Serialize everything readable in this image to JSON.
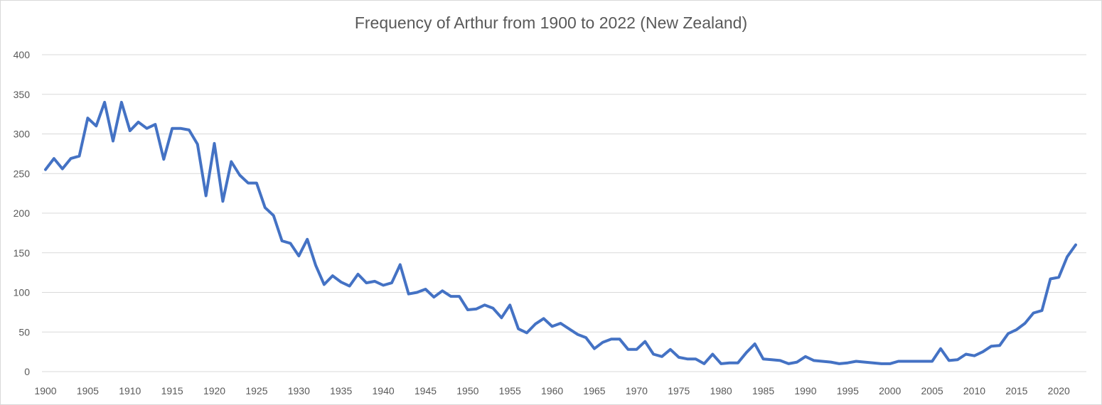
{
  "chart_data": {
    "type": "line",
    "title": "Frequency of Arthur from 1900 to 2022 (New Zealand)",
    "xlabel": "",
    "ylabel": "",
    "ylim": [
      0,
      400
    ],
    "xlim": [
      1900,
      2022
    ],
    "grid": true,
    "legend": "none",
    "y_ticks": [
      0,
      50,
      100,
      150,
      200,
      250,
      300,
      350,
      400
    ],
    "x_ticks": [
      1900,
      1905,
      1910,
      1915,
      1920,
      1925,
      1930,
      1935,
      1940,
      1945,
      1950,
      1955,
      1960,
      1965,
      1970,
      1975,
      1980,
      1985,
      1990,
      1995,
      2000,
      2005,
      2010,
      2015,
      2020
    ],
    "colors": {
      "line": "#4472C4",
      "grid": "#d9d9d9",
      "text": "#595959"
    },
    "series": [
      {
        "x": [
          1900,
          1901,
          1902,
          1903,
          1904,
          1905,
          1906,
          1907,
          1908,
          1909,
          1910,
          1911,
          1912,
          1913,
          1914,
          1915,
          1916,
          1917,
          1918,
          1919,
          1920,
          1921,
          1922,
          1923,
          1924,
          1925,
          1926,
          1927,
          1928,
          1929,
          1930,
          1931,
          1932,
          1933,
          1934,
          1935,
          1936,
          1937,
          1938,
          1939,
          1940,
          1941,
          1942,
          1943,
          1944,
          1945,
          1946,
          1947,
          1948,
          1949,
          1950,
          1951,
          1952,
          1953,
          1954,
          1955,
          1956,
          1957,
          1958,
          1959,
          1960,
          1961,
          1962,
          1963,
          1964,
          1965,
          1966,
          1967,
          1968,
          1969,
          1970,
          1971,
          1972,
          1973,
          1974,
          1975,
          1976,
          1977,
          1978,
          1979,
          1980,
          1981,
          1982,
          1983,
          1984,
          1985,
          1986,
          1987,
          1988,
          1989,
          1990,
          1991,
          1992,
          1993,
          1994,
          1995,
          1996,
          1997,
          1998,
          1999,
          2000,
          2001,
          2002,
          2003,
          2004,
          2005,
          2006,
          2007,
          2008,
          2009,
          2010,
          2011,
          2012,
          2013,
          2014,
          2015,
          2016,
          2017,
          2018,
          2019,
          2020,
          2021,
          2022
        ],
        "values": [
          255,
          269,
          256,
          269,
          272,
          320,
          310,
          340,
          291,
          340,
          304,
          315,
          307,
          312,
          268,
          307,
          307,
          305,
          287,
          222,
          288,
          215,
          265,
          248,
          238,
          238,
          207,
          197,
          165,
          162,
          146,
          167,
          134,
          110,
          121,
          113,
          108,
          123,
          112,
          114,
          109,
          112,
          135,
          98,
          100,
          104,
          94,
          102,
          95,
          95,
          78,
          79,
          84,
          80,
          68,
          84,
          54,
          49,
          60,
          67,
          57,
          61,
          54,
          47,
          43,
          29,
          37,
          41,
          41,
          28,
          28,
          38,
          22,
          19,
          28,
          18,
          16,
          16,
          10,
          22,
          10,
          11,
          11,
          24,
          35,
          16,
          15,
          14,
          10,
          12,
          19,
          14,
          13,
          12,
          10,
          11,
          13,
          12,
          11,
          10,
          10,
          13,
          13,
          13,
          13,
          13,
          29,
          14,
          15,
          22,
          20,
          25,
          32,
          33,
          48,
          53,
          61,
          74,
          77,
          117,
          119,
          145,
          160
        ]
      }
    ]
  }
}
